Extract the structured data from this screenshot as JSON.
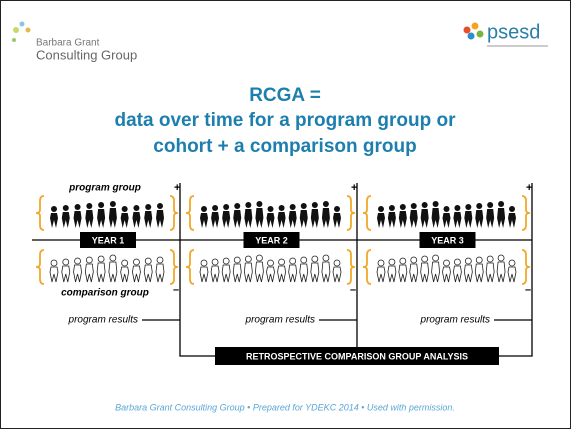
{
  "logo": {
    "line1": "Barbara Grant",
    "line2": "Consulting Group"
  },
  "partner_logo": "psesd",
  "title": [
    "RCGA =",
    "data over time for a program group or",
    "cohort + a comparison group"
  ],
  "diagram": {
    "program_label": "program group",
    "comparison_label": "comparison group",
    "panels": [
      {
        "year": "YEAR 1",
        "plus": "+",
        "minus": "–",
        "results": "program results"
      },
      {
        "year": "YEAR 2",
        "plus": "+",
        "minus": "–",
        "results": "program results"
      },
      {
        "year": "YEAR 3",
        "plus": "+",
        "minus": "–",
        "results": "program results"
      }
    ],
    "analysis": "RETROSPECTIVE COMPARISON GROUP ANALYSIS"
  },
  "footer": "Barbara Grant Consulting Group  •  Prepared for YDEKC 2014  •  Used with permission."
}
